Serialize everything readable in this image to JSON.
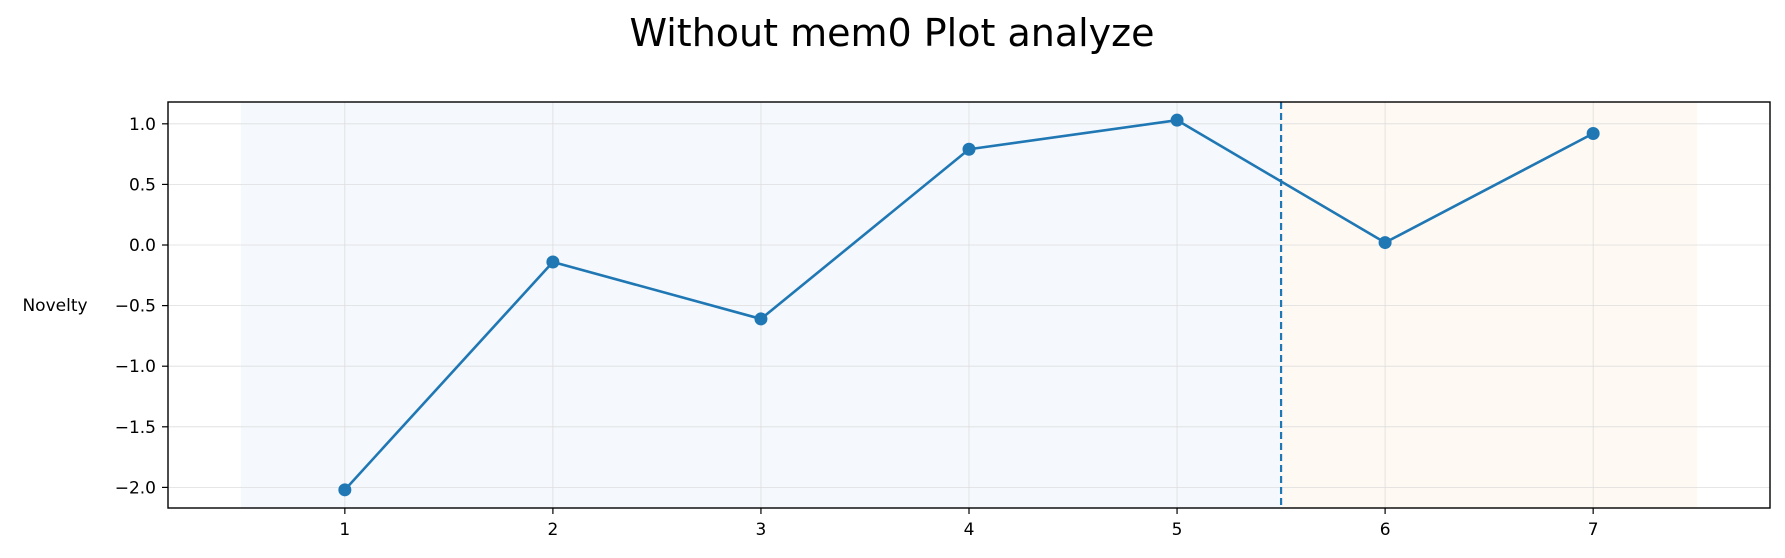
{
  "chart_data": {
    "type": "line",
    "title": "Without mem0 Plot analyze",
    "xlabel": "",
    "ylabel": "Novelty",
    "x": [
      1,
      2,
      3,
      4,
      5,
      6,
      7
    ],
    "series": [
      {
        "values": [
          -2.02,
          -0.14,
          -0.61,
          0.79,
          1.03,
          0.02,
          0.92
        ]
      }
    ],
    "x_ticks": [
      1,
      2,
      3,
      4,
      5,
      6,
      7
    ],
    "y_ticks": [
      1.0,
      0.5,
      0.0,
      -0.5,
      -1.0,
      -1.5,
      -2.0
    ],
    "y_tick_labels": [
      "1.0",
      "0.5",
      "0.0",
      "−0.5",
      "−1.0",
      "−1.5",
      "−2.0"
    ],
    "xlim": [
      0.15,
      7.85
    ],
    "ylim": [
      -2.17,
      1.18
    ],
    "grid": true,
    "regions": [
      {
        "x_start": 0.5,
        "x_end": 5.5,
        "color": "#f5f8fd"
      },
      {
        "x_start": 5.5,
        "x_end": 7.5,
        "color": "#fef9f3"
      }
    ],
    "divider_x": 5.5,
    "colors": {
      "line": "#1f77b4",
      "grid": "#dddddd",
      "axes": "#000000"
    }
  }
}
